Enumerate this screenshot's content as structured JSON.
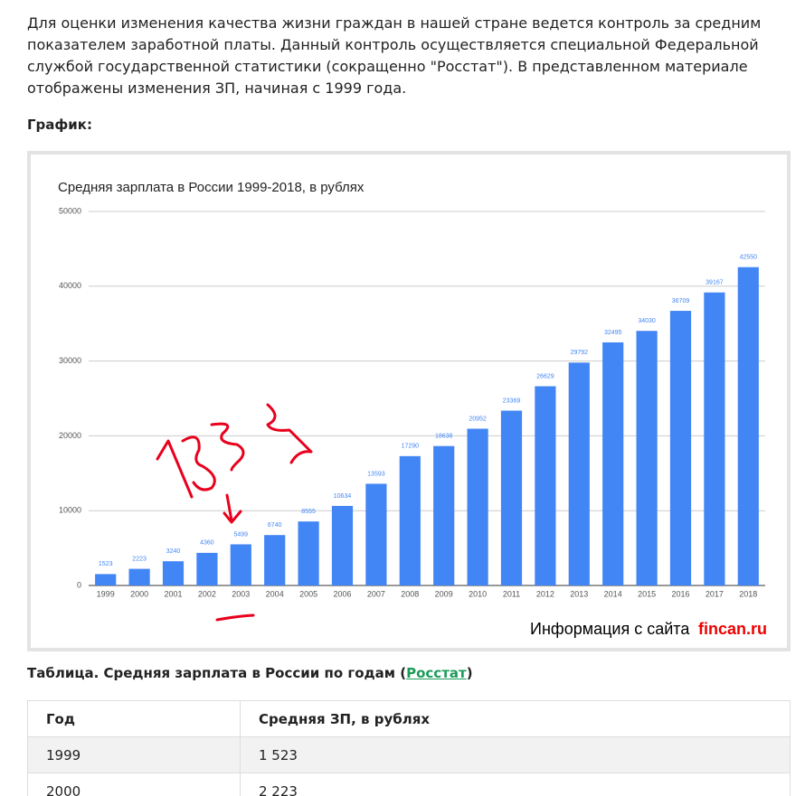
{
  "intro": "Для оценки изменения качества жизни граждан в нашей стране ведется контроль за средним показателем заработной платы. Данный контроль осуществляется специальной Федеральной службой государственной статистики (сокращенно \"Росстат\"). В представленном материале отображены изменения ЗП, начиная с 1999 года.",
  "graph_label": "График:",
  "chart_data": {
    "type": "bar",
    "title": "Средняя зарплата в России 1999-2018, в рублях",
    "categories": [
      "1999",
      "2000",
      "2001",
      "2002",
      "2003",
      "2004",
      "2005",
      "2006",
      "2007",
      "2008",
      "2009",
      "2010",
      "2011",
      "2012",
      "2013",
      "2014",
      "2015",
      "2016",
      "2017",
      "2018"
    ],
    "values": [
      1523,
      2223,
      3240,
      4360,
      5499,
      6740,
      8555,
      10634,
      13593,
      17290,
      18638,
      20952,
      23369,
      26629,
      29792,
      32495,
      34030,
      36709,
      39167,
      42550
    ],
    "color": "#4285f4",
    "ylim": [
      0,
      50000
    ],
    "yticks": [
      0,
      10000,
      20000,
      30000,
      40000,
      50000
    ],
    "grid": true,
    "watermark": {
      "text": "Информация с сайта",
      "site": "fincan.ru"
    }
  },
  "table_title": {
    "text": "Таблица. Средняя зарплата в России по годам (",
    "link": "Росстат",
    "close": ")"
  },
  "table": {
    "header": [
      "Год",
      "Средняя ЗП, в рублях"
    ],
    "rows": [
      [
        "1999",
        "1 523"
      ],
      [
        "2000",
        "2 223"
      ]
    ]
  }
}
